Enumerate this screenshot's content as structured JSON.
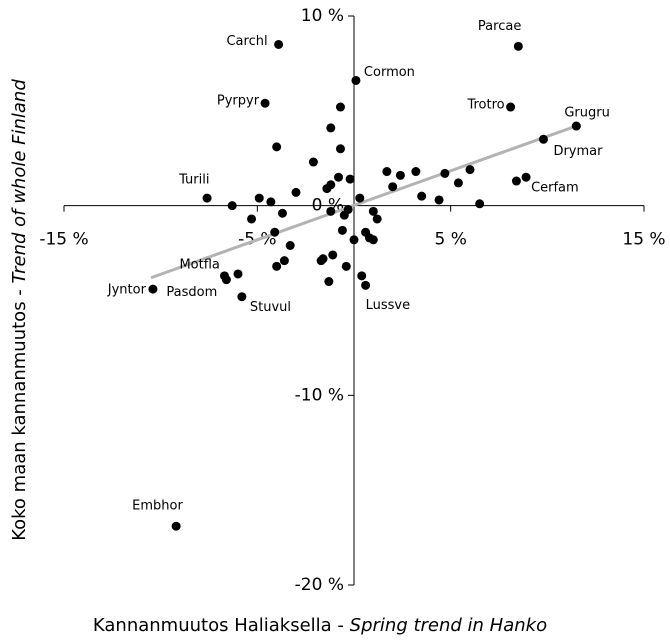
{
  "chart_data": {
    "type": "scatter",
    "xlabel": {
      "main": "Kannanmuutos Haliaksella - ",
      "emph": "Spring trend in Hanko"
    },
    "ylabel": {
      "main": "Koko maan kannanmuutos - ",
      "emph": "Trend of whole Finland"
    },
    "xlim": [
      -15,
      15
    ],
    "ylim": [
      -20,
      10
    ],
    "xticks": [
      {
        "value": -15,
        "label": "-15 %"
      },
      {
        "value": -5,
        "label": "-5 %"
      },
      {
        "value": 5,
        "label": "5 %"
      },
      {
        "value": 15,
        "label": "15 %"
      }
    ],
    "yticks": [
      {
        "value": 10,
        "label": "10 %"
      },
      {
        "value": 0,
        "label": "0 %"
      },
      {
        "value": -10,
        "label": "-10 %"
      },
      {
        "value": -20,
        "label": "-20 %"
      }
    ],
    "color": "#000000",
    "trendline": {
      "color": "#b3b3b3",
      "x": [
        -10.5,
        11.5
      ],
      "y": [
        -3.8,
        4.2
      ]
    },
    "labels": [
      "Carchl",
      "Parcae",
      "Cormon",
      "Pyrpyr",
      "Trotro",
      "Grugru",
      "Drymar",
      "Cerfam",
      "Turili",
      "Jyntor",
      "Motfla",
      "Pasdom",
      "Stuvul",
      "Lussve",
      "Embhor",
      null,
      null,
      null,
      null,
      null,
      null,
      null,
      null,
      null,
      null,
      null,
      null,
      null,
      null,
      null,
      null,
      null,
      null,
      null,
      null,
      null,
      null,
      null,
      null,
      null,
      null,
      null,
      null,
      null,
      null,
      null,
      null,
      null,
      null,
      null,
      null,
      null,
      null,
      null,
      null,
      null,
      null,
      null,
      null,
      null,
      null
    ],
    "x": [
      -3.9,
      8.5,
      0.1,
      -4.6,
      8.1,
      11.5,
      9.8,
      8.9,
      -7.6,
      -10.4,
      -6.7,
      -6.6,
      -5.8,
      0.6,
      -9.2,
      8.4,
      -6.0,
      1.7,
      2.4,
      3.2,
      4.7,
      6.0,
      5.4,
      2.0,
      3.5,
      4.4,
      6.5,
      -1.4,
      -1.2,
      -0.8,
      -0.2,
      0.3,
      -0.3,
      -0.5,
      -3.0,
      -4.9,
      -6.3,
      -5.3,
      -4.3,
      -3.7,
      -1.2,
      1.0,
      1.2,
      -0.6,
      0.0,
      0.6,
      0.8,
      1.0,
      -4.1,
      -3.3,
      -3.6,
      -4.0,
      -1.7,
      -1.6,
      -1.1,
      -0.4,
      -1.3,
      0.4,
      -0.7,
      -1.2,
      -4.0,
      -0.7,
      -2.1
    ],
    "y": [
      8.5,
      8.4,
      6.6,
      5.4,
      5.2,
      4.2,
      3.5,
      1.5,
      0.4,
      -4.4,
      -3.7,
      -3.9,
      -4.8,
      -4.2,
      -16.9,
      1.3,
      -3.6,
      1.8,
      1.6,
      1.8,
      1.7,
      1.9,
      1.2,
      1.0,
      0.5,
      0.3,
      0.1,
      0.9,
      1.1,
      1.5,
      1.4,
      0.4,
      -0.2,
      -0.5,
      0.7,
      0.4,
      0.0,
      -0.7,
      0.2,
      -0.4,
      -0.3,
      -0.3,
      -0.7,
      -1.3,
      -1.8,
      -1.4,
      -1.7,
      -1.8,
      -1.4,
      -2.1,
      -2.9,
      -3.2,
      -2.9,
      -2.8,
      -2.6,
      -3.2,
      -4.0,
      -3.7,
      5.2,
      4.1,
      3.1,
      3.0,
      2.3
    ]
  }
}
